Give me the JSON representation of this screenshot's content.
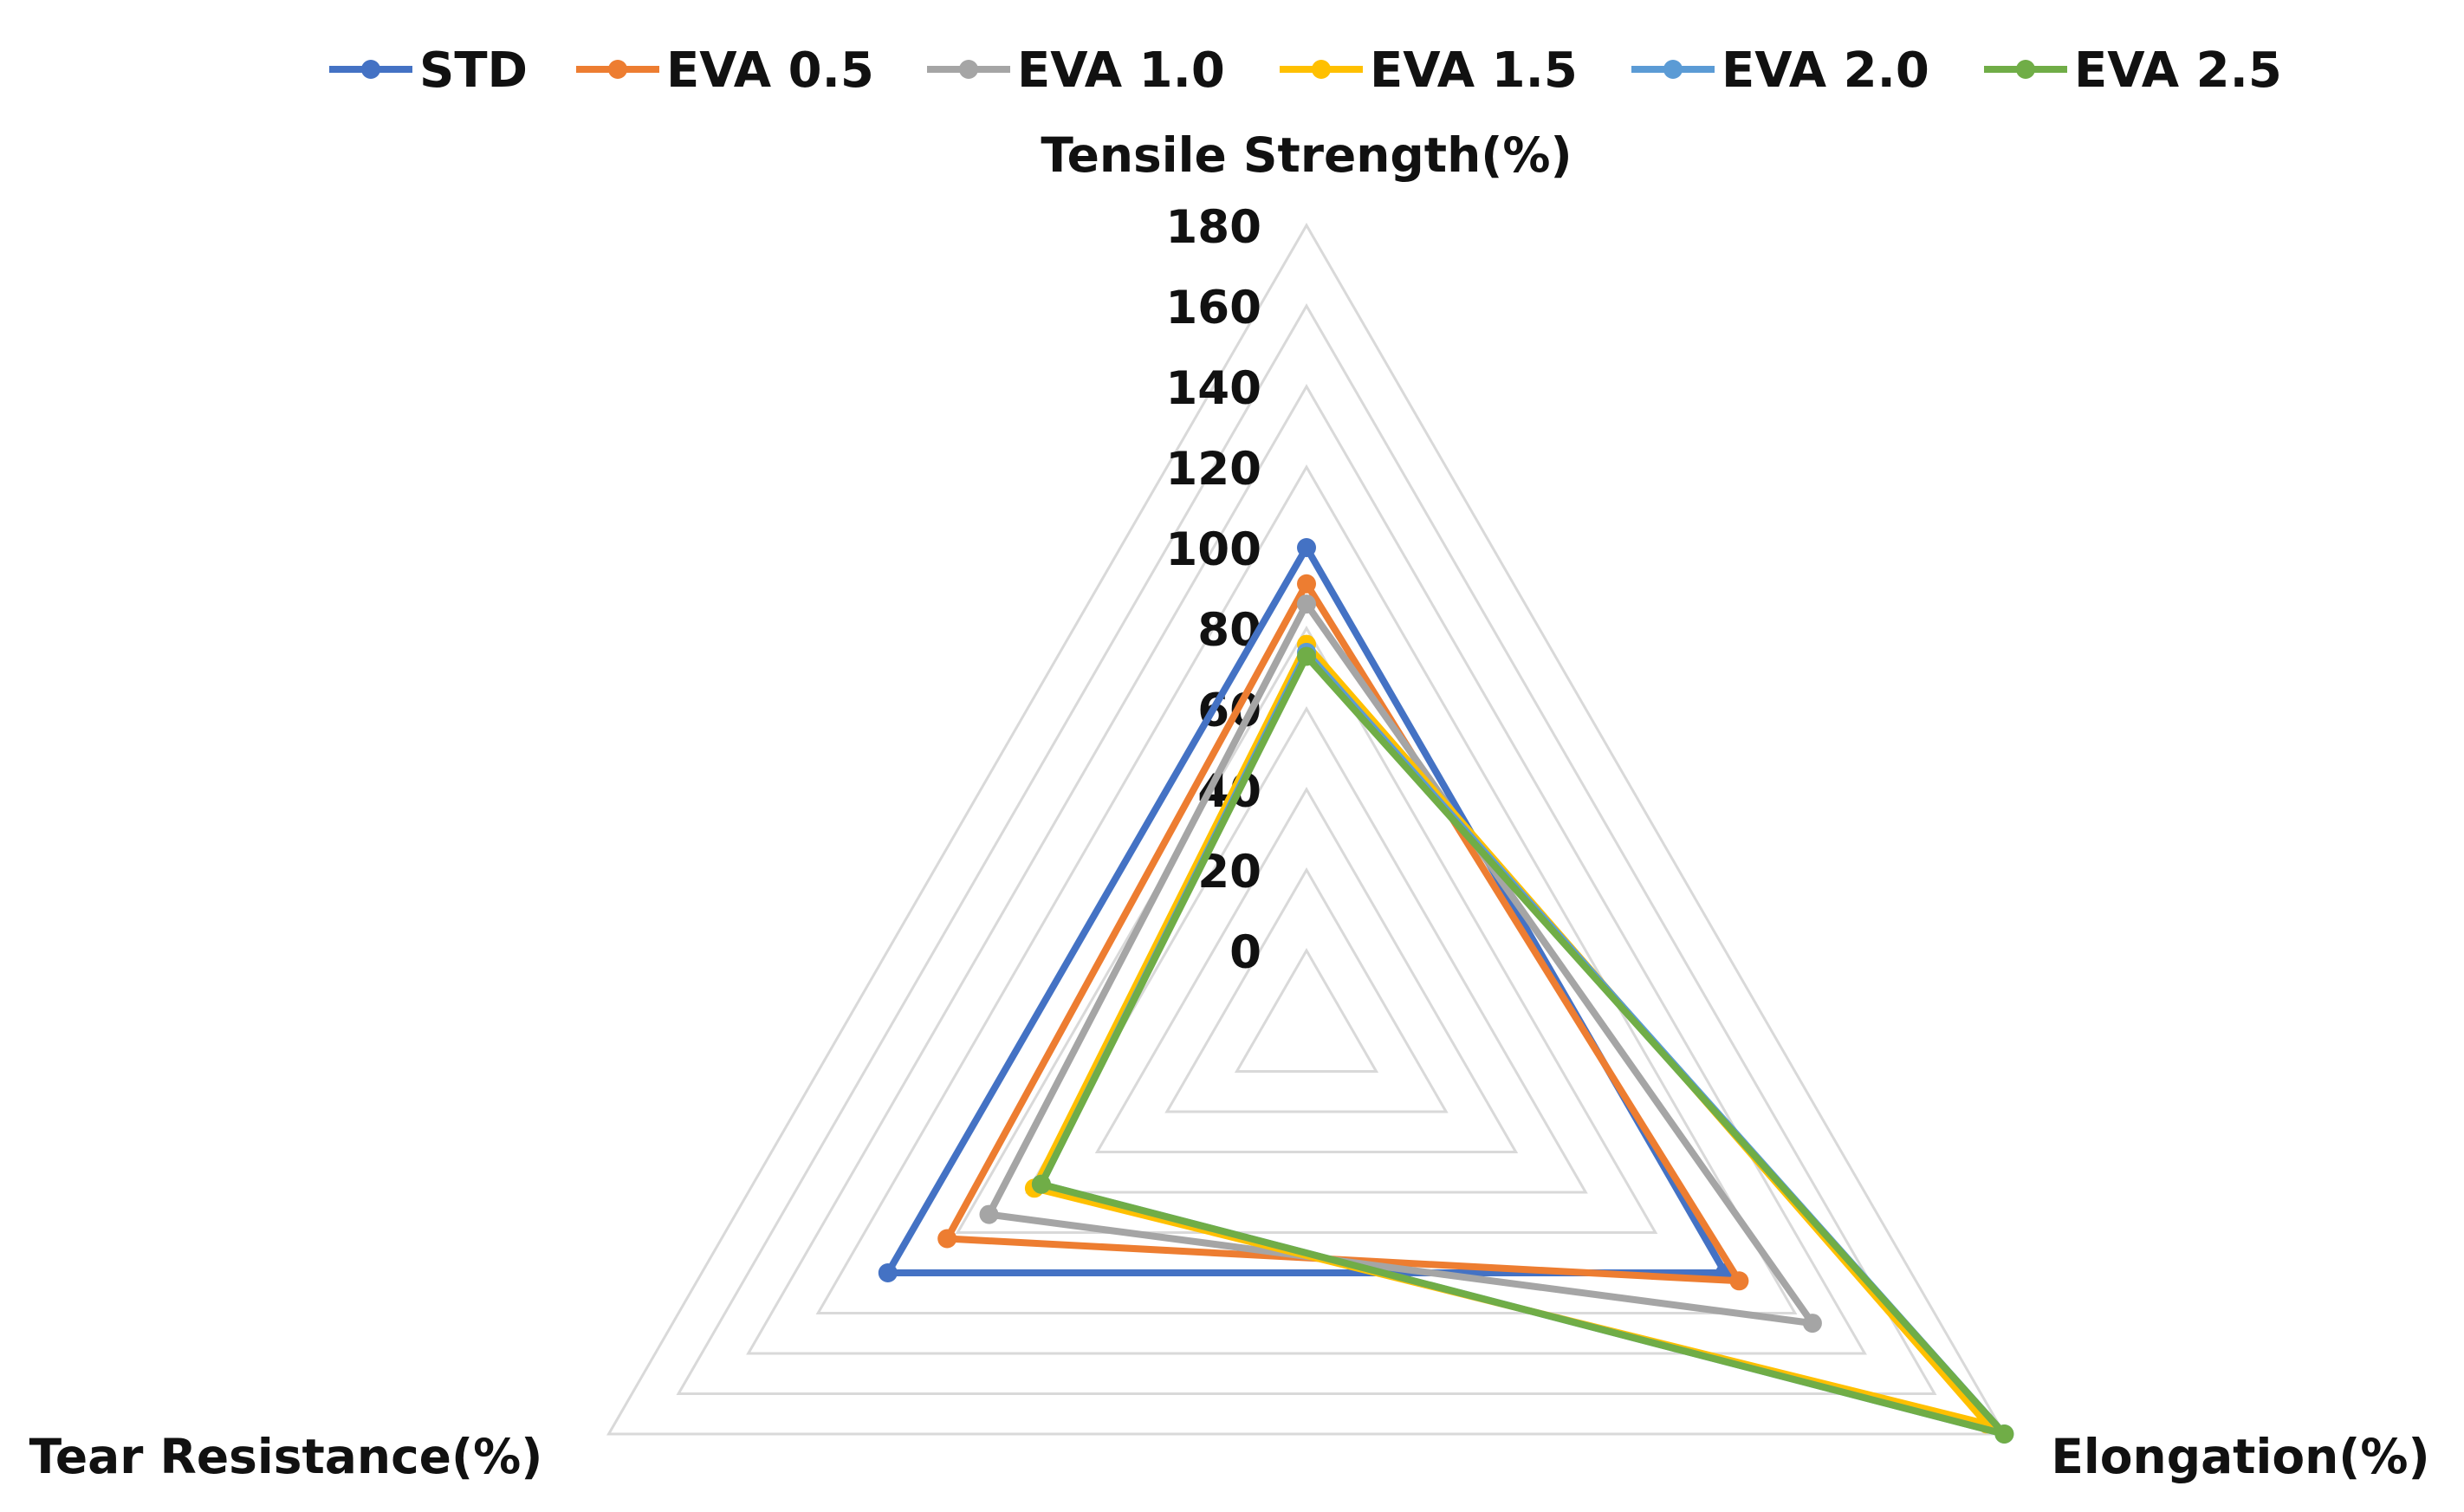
{
  "chart_data": {
    "type": "radar",
    "axes": [
      "Tensile Strength(%)",
      "Elongation(%)",
      "Tear Resistance(%)"
    ],
    "rlim": [
      0,
      180
    ],
    "ticks": [
      "0",
      "20",
      "40",
      "60",
      "80",
      "100",
      "120",
      "140",
      "160",
      "180"
    ],
    "tick_values": [
      0,
      20,
      40,
      60,
      80,
      100,
      120,
      140,
      160,
      180
    ],
    "legend_position": "top",
    "series": [
      {
        "name": "STD",
        "color": "#4472C4",
        "values": [
          100,
          100,
          100
        ]
      },
      {
        "name": "EVA 0.5",
        "color": "#ED7D31",
        "values": [
          91,
          104,
          83
        ]
      },
      {
        "name": "EVA 1.0",
        "color": "#A5A5A5",
        "values": [
          86,
          125,
          71
        ]
      },
      {
        "name": "EVA 1.5",
        "color": "#FFC000",
        "values": [
          76,
          175,
          58
        ]
      },
      {
        "name": "EVA 2.0",
        "color": "#5B9BD5",
        "values": [
          74,
          180,
          56
        ]
      },
      {
        "name": "EVA 2.5",
        "color": "#70AD47",
        "values": [
          73,
          180,
          56
        ]
      }
    ]
  }
}
